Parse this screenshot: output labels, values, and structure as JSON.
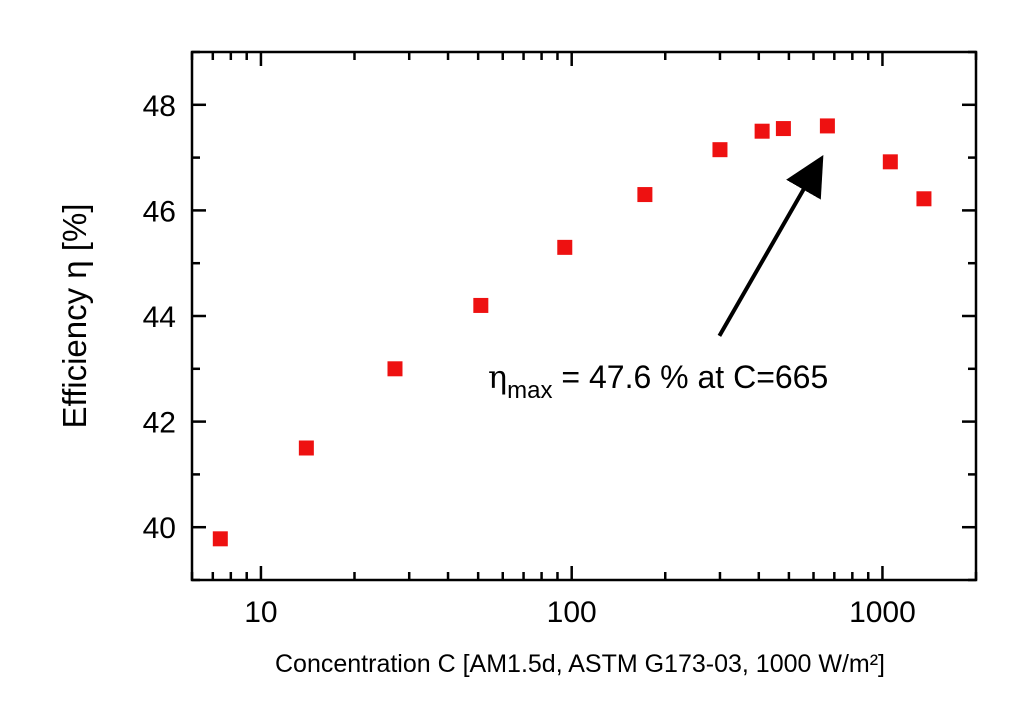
{
  "chart_data": {
    "type": "scatter",
    "title": "",
    "xlabel": "Concentration C [AM1.5d, ASTM G173-03, 1000 W/m²]",
    "ylabel": "Efficiency η [%]",
    "xscale": "log",
    "xlim": [
      6,
      2000
    ],
    "ylim": [
      39,
      49
    ],
    "xticks": [
      10,
      100,
      1000
    ],
    "xtick_labels": [
      "10",
      "100",
      "1000"
    ],
    "yticks": [
      40,
      42,
      44,
      46,
      48
    ],
    "ytick_labels": [
      "40",
      "42",
      "44",
      "46",
      "48"
    ],
    "grid": false,
    "legend": "none",
    "marker_color": "#ee1111",
    "series": [
      {
        "x": [
          7.4,
          14,
          27,
          51,
          95,
          172,
          300,
          410,
          480,
          665,
          1060,
          1360
        ],
        "y": [
          39.78,
          41.5,
          43.0,
          44.2,
          45.3,
          46.3,
          47.15,
          47.5,
          47.55,
          47.6,
          46.92,
          46.22
        ]
      }
    ],
    "annotation": {
      "eta_symbol": "η",
      "subscript": "max",
      "text": " = 47.6 % at C=665",
      "target": {
        "x": 665,
        "y": 47.6
      }
    }
  }
}
